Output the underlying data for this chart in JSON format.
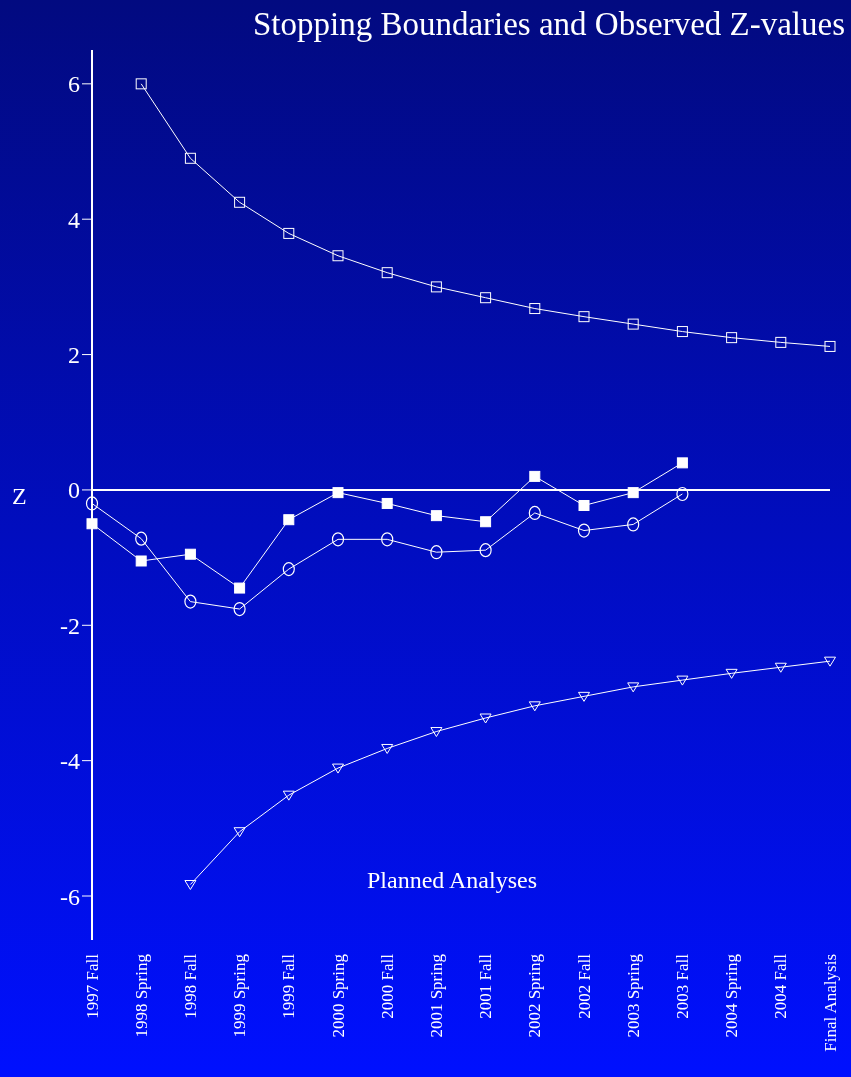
{
  "chart_data": {
    "type": "line",
    "title": "Stopping Boundaries and Observed Z-values",
    "xlabel": "Planned Analyses",
    "ylabel": "Z",
    "categories": [
      "1997 Fall",
      "1998 Spring",
      "1998 Fall",
      "1999 Spring",
      "1999 Fall",
      "2000 Spring",
      "2000 Fall",
      "2001 Spring",
      "2001 Fall",
      "2002 Spring",
      "2002 Fall",
      "2003 Spring",
      "2003 Fall",
      "2004 Spring",
      "2004 Fall",
      "Final Analysis"
    ],
    "ylim": [
      -6.65,
      6.5
    ],
    "yticks": [
      -6,
      -4,
      -2,
      0,
      2,
      4,
      6
    ],
    "ref_lines": [
      {
        "axis": "y",
        "value": 0,
        "color": "#ffffff"
      }
    ],
    "series": [
      {
        "color": "#ffffff",
        "marker": "square",
        "values": [
          null,
          6.0,
          4.9,
          4.25,
          3.79,
          3.46,
          3.21,
          3.0,
          2.84,
          2.68,
          2.56,
          2.45,
          2.34,
          2.25,
          2.18,
          2.12
        ]
      },
      {
        "color": "#ffffff",
        "marker": "triangle",
        "values": [
          null,
          null,
          -5.83,
          -5.05,
          -4.51,
          -4.11,
          -3.82,
          -3.57,
          -3.37,
          -3.19,
          -3.05,
          -2.91,
          -2.81,
          -2.71,
          -2.62,
          -2.53
        ]
      },
      {
        "color": "#ffffff",
        "marker": "square",
        "values": [
          -0.5,
          -1.05,
          -0.95,
          -1.45,
          -0.44,
          -0.04,
          -0.2,
          -0.38,
          -0.47,
          0.2,
          -0.23,
          -0.04,
          0.4,
          null,
          null,
          null
        ]
      },
      {
        "color": "#ffffff",
        "marker": "circle",
        "values": [
          -0.2,
          -0.72,
          -1.65,
          -1.76,
          -1.17,
          -0.73,
          -0.73,
          -0.92,
          -0.89,
          -0.34,
          -0.6,
          -0.51,
          -0.06,
          null,
          null,
          null
        ]
      }
    ]
  }
}
